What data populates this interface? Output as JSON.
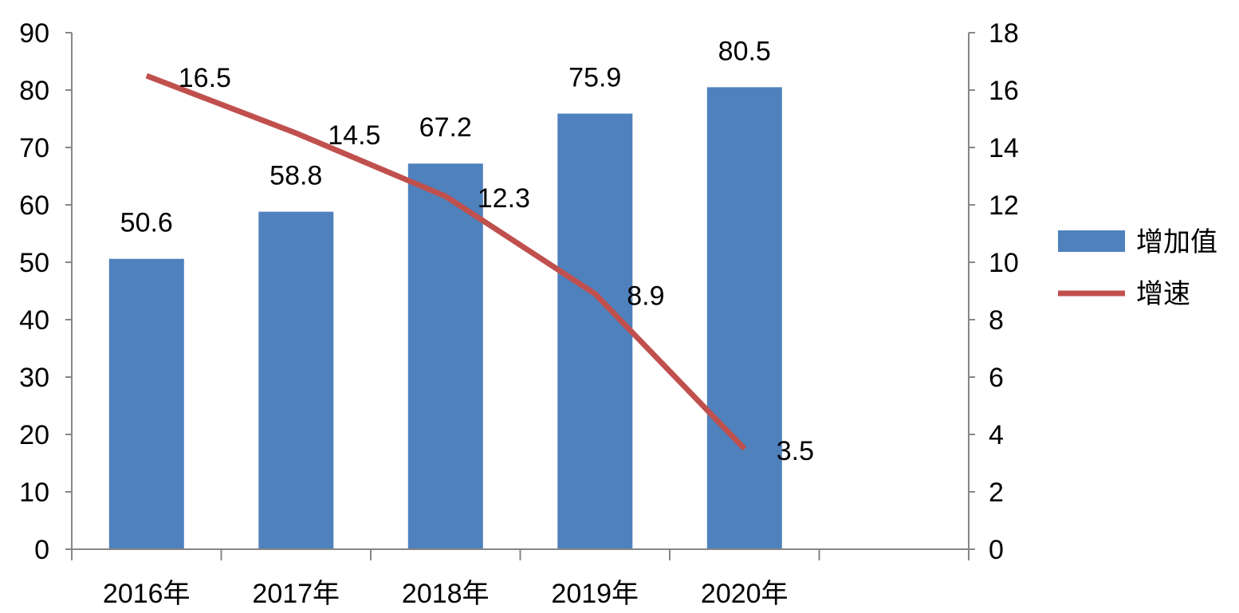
{
  "chart_data": {
    "type": "bar",
    "categories": [
      "2016年",
      "2017年",
      "2018年",
      "2019年",
      "2020年"
    ],
    "series": [
      {
        "name": "增加值",
        "type": "bar",
        "axis": "left",
        "color": "#4f81bd",
        "values": [
          50.6,
          58.8,
          67.2,
          75.9,
          80.5
        ],
        "labels": [
          "50.6",
          "58.8",
          "67.2",
          "75.9",
          "80.5"
        ]
      },
      {
        "name": "增速",
        "type": "line",
        "axis": "right",
        "color": "#c0504d",
        "values": [
          16.5,
          14.5,
          12.3,
          8.9,
          3.5
        ],
        "labels": [
          "16.5",
          "14.5",
          "12.3",
          "8.9",
          "3.5"
        ]
      }
    ],
    "y_left": {
      "min": 0,
      "max": 90,
      "ticks": [
        "0",
        "10",
        "20",
        "30",
        "40",
        "50",
        "60",
        "70",
        "80",
        "90"
      ]
    },
    "y_right": {
      "min": 0,
      "max": 18,
      "ticks": [
        "0",
        "2",
        "4",
        "6",
        "8",
        "10",
        "12",
        "14",
        "16",
        "18"
      ]
    },
    "title": "",
    "xlabel": "",
    "ylabel": "",
    "grid": false,
    "legend_position": "right"
  }
}
